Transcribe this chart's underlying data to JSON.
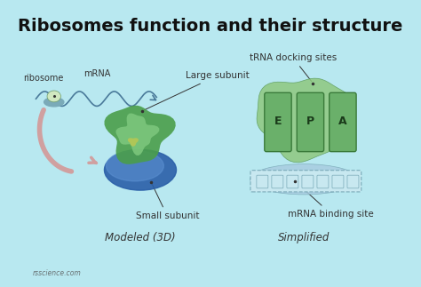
{
  "title": "Ribosomes function and their structure",
  "title_fontsize": 14,
  "title_fontweight": "bold",
  "bg_color": "#b8e8f0",
  "labels": {
    "ribosome": "ribosome",
    "mrna": "mRNA",
    "large_subunit": "Large subunit",
    "trna_docking": "tRNA docking sites",
    "small_subunit": "Small subunit",
    "mrna_binding": "mRNA binding site",
    "modeled": "Modeled (3D)",
    "simplified": "Simplified",
    "E": "E",
    "P": "P",
    "A": "A",
    "watermark": "rsscience.com"
  },
  "colors": {
    "large_subunit_3d_dark": "#2e6e2e",
    "large_subunit_3d_mid": "#4a9e4a",
    "large_subunit_3d_light": "#7ec87e",
    "large_subunit_3d_yellow": "#c8c84a",
    "small_subunit_3d": "#2a5fa8",
    "small_subunit_3d_light": "#5a8fd0",
    "large_subunit_simplified": "#8ec87e",
    "small_subunit_simplified": "#a8cce0",
    "small_subunit_simplified_dark": "#7aaab8",
    "tRNA_slot_color": "#6ab06a",
    "tRNA_slot_border": "#3a7a3a",
    "mrna_binding_fill": "#c8e8f0",
    "mrna_binding_border": "#7aaab8",
    "ribosome_small_fill": "#d0e8c0",
    "ribosome_small_border": "#6a9a6a",
    "arrow_color": "#d0a0a0",
    "wave_color": "#4a7a9a",
    "dot_color": "#333333",
    "label_color": "#333333",
    "title_color": "#111111"
  }
}
